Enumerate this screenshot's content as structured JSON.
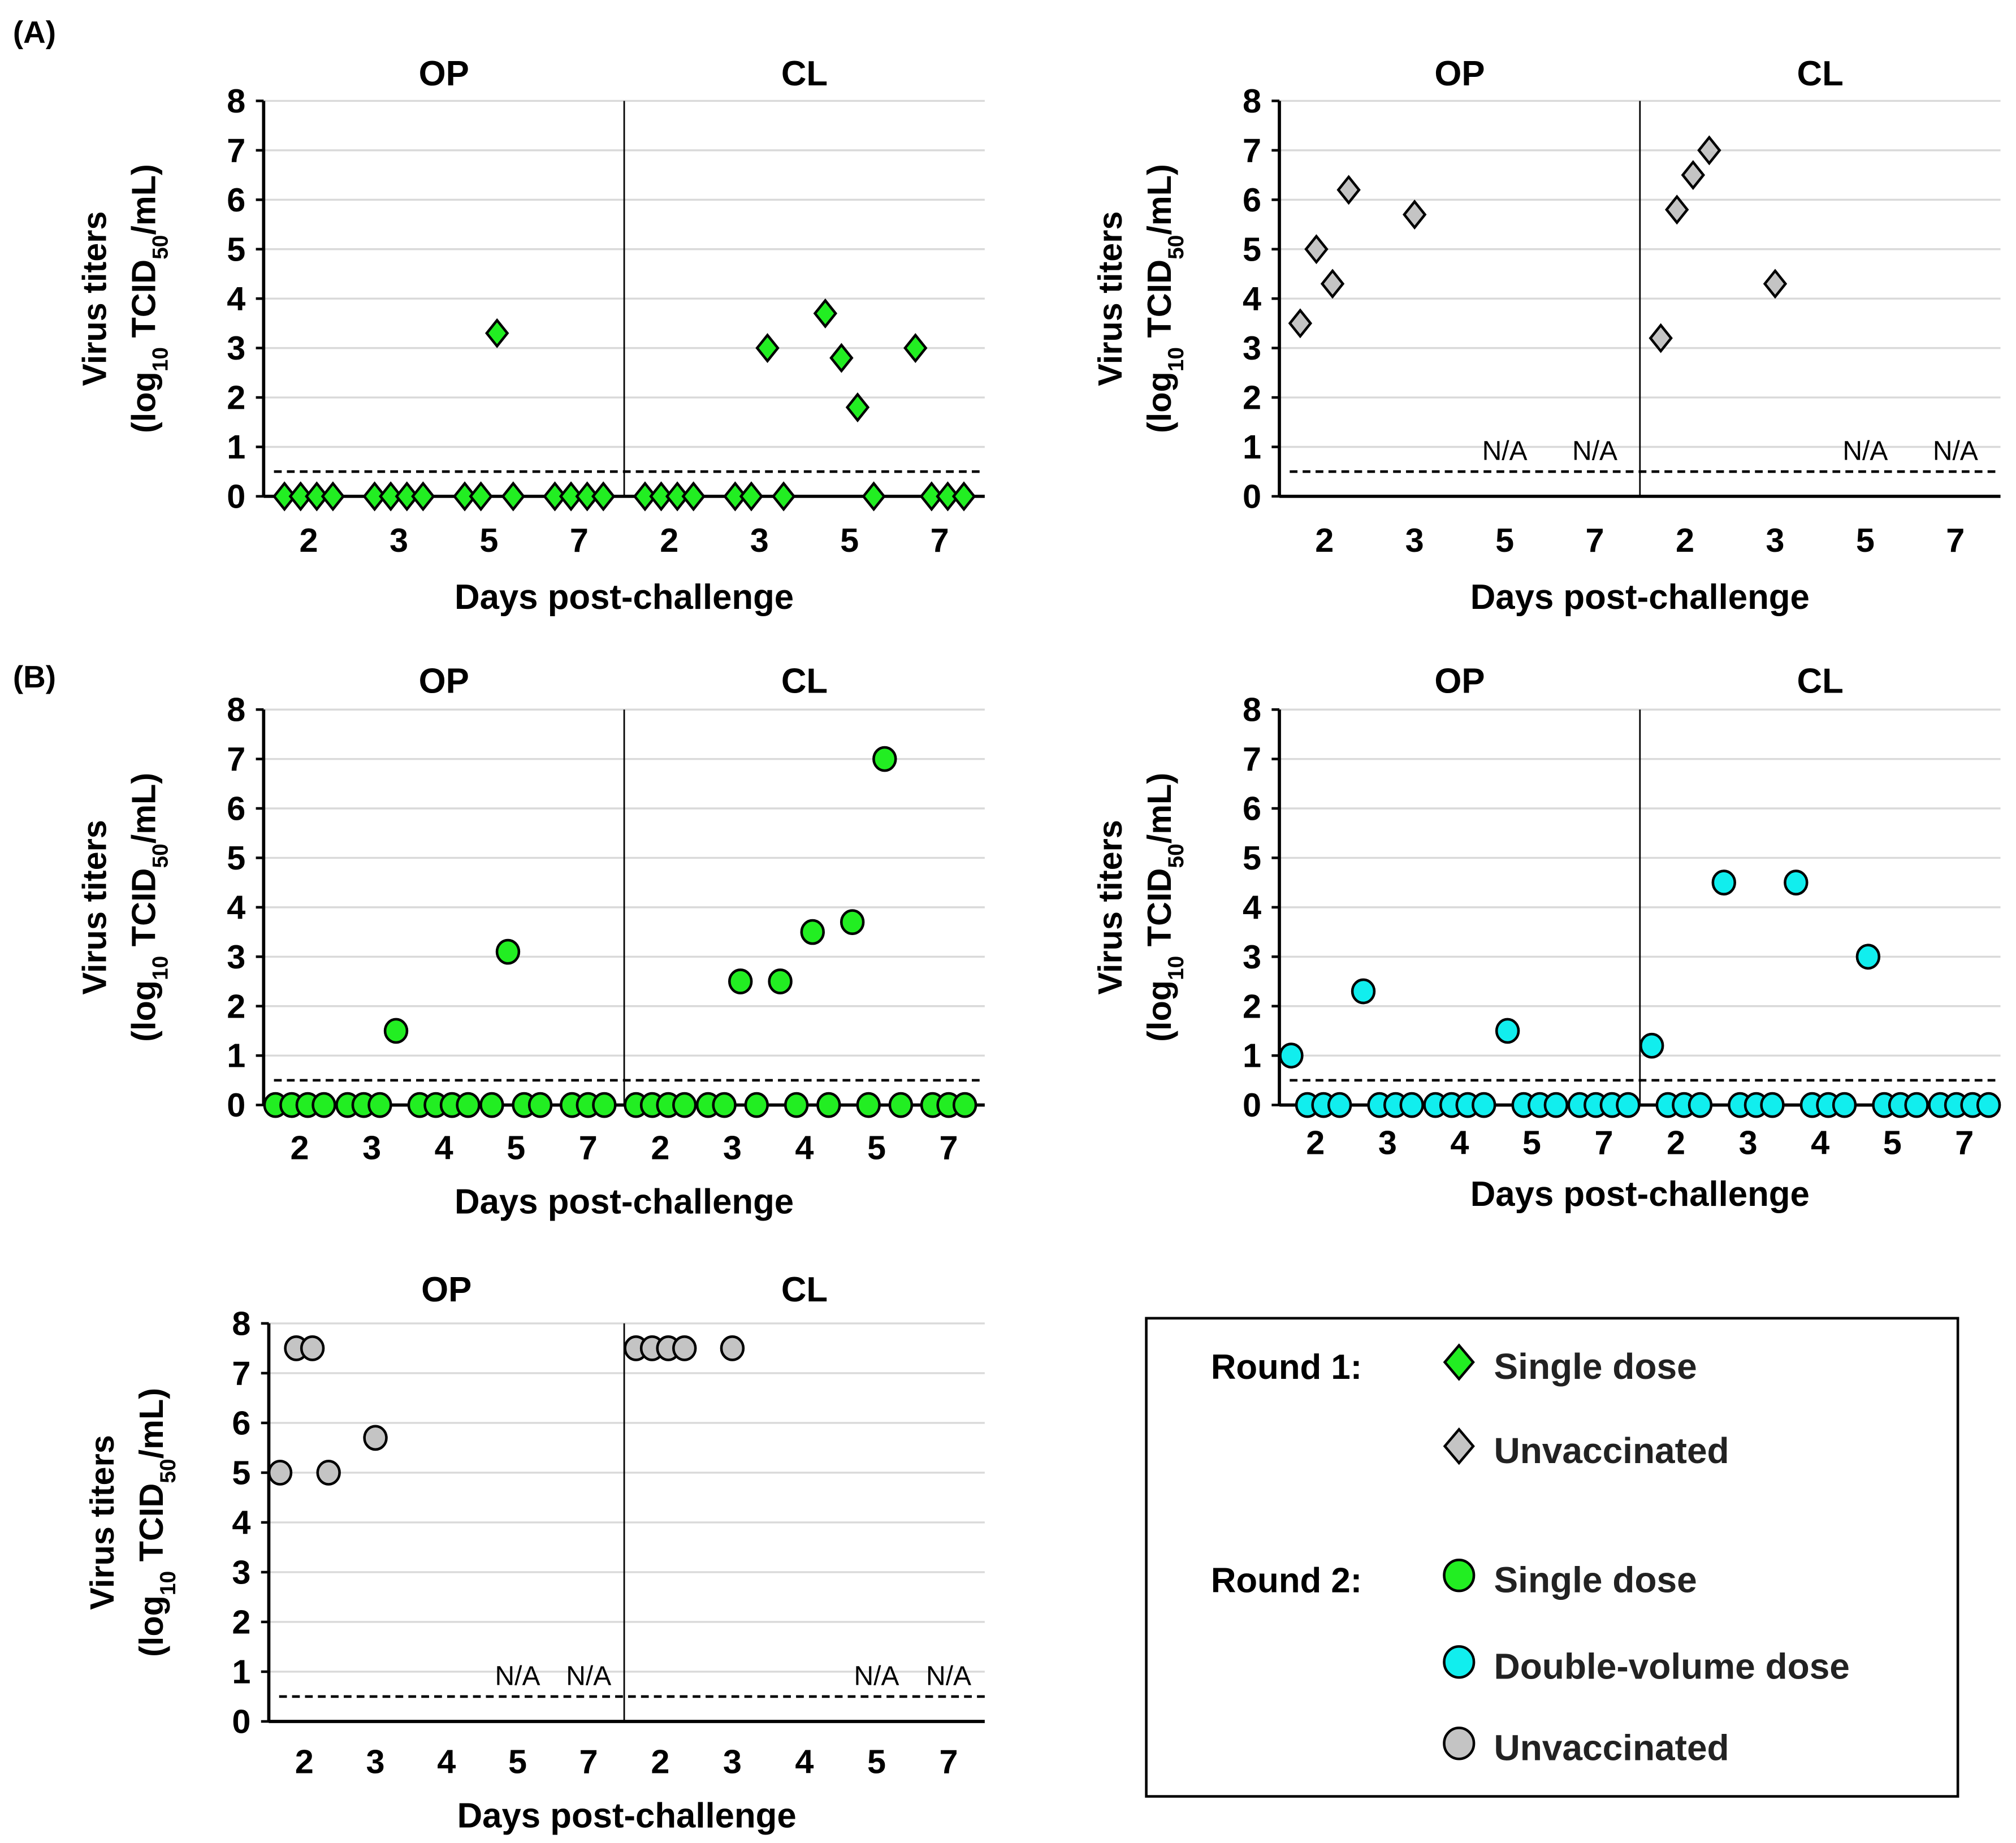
{
  "figure_labels": {
    "a": "(A)",
    "b": "(B)"
  },
  "colors": {
    "green": "#22ee22",
    "grey": "#c4c4c4",
    "cyan": "#11eeee",
    "grid": "#d9d9d9"
  },
  "chart_data": [
    {
      "type": "scatter",
      "marker": "diamond",
      "color_key": "green",
      "ylabel": [
        "Virus titers",
        "(log",
        "10",
        " TCID",
        "50",
        "/mL)"
      ],
      "xlabel": "Days post-challenge",
      "ylim": [
        0,
        8
      ],
      "yticks": [
        "0",
        "1",
        "2",
        "3",
        "4",
        "5",
        "6",
        "7",
        "8"
      ],
      "detection_limit": 0.5,
      "grid": true,
      "sections": [
        {
          "title": "OP",
          "groups": [
            {
              "day": "2",
              "values": [
                0,
                0,
                0,
                0
              ]
            },
            {
              "day": "3",
              "values": [
                0,
                0,
                0,
                0
              ]
            },
            {
              "day": "5",
              "values": [
                0,
                0,
                3.3,
                0
              ]
            },
            {
              "day": "7",
              "values": [
                0,
                0,
                0,
                0
              ]
            }
          ]
        },
        {
          "title": "CL",
          "groups": [
            {
              "day": "2",
              "values": [
                0,
                0,
                0,
                0
              ]
            },
            {
              "day": "3",
              "values": [
                0,
                0,
                3.0,
                0
              ]
            },
            {
              "day": "5",
              "values": [
                3.7,
                2.8,
                1.8,
                0
              ]
            },
            {
              "day": "7",
              "values": [
                3.0,
                0,
                0,
                0
              ]
            }
          ]
        }
      ]
    },
    {
      "type": "scatter",
      "marker": "diamond",
      "color_key": "grey",
      "ylabel": [
        "Virus titers",
        "(log",
        "10",
        " TCID",
        "50",
        "/mL)"
      ],
      "xlabel": "Days post-challenge",
      "ylim": [
        0,
        8
      ],
      "yticks": [
        "0",
        "1",
        "2",
        "3",
        "4",
        "5",
        "6",
        "7",
        "8"
      ],
      "detection_limit": 0.5,
      "grid": true,
      "sections": [
        {
          "title": "OP",
          "groups": [
            {
              "day": "2",
              "values": [
                3.5,
                5.0,
                4.3,
                6.2
              ]
            },
            {
              "day": "3",
              "values": [
                5.7
              ]
            },
            {
              "day": "5",
              "values": [],
              "note": "N/A"
            },
            {
              "day": "7",
              "values": [],
              "note": "N/A"
            }
          ]
        },
        {
          "title": "CL",
          "groups": [
            {
              "day": "2",
              "values": [
                3.2,
                5.8,
                6.5,
                7.0
              ]
            },
            {
              "day": "3",
              "values": [
                4.3
              ]
            },
            {
              "day": "5",
              "values": [],
              "note": "N/A"
            },
            {
              "day": "7",
              "values": [],
              "note": "N/A"
            }
          ]
        }
      ]
    },
    {
      "type": "scatter",
      "marker": "circle",
      "color_key": "green",
      "ylabel": [
        "Virus titers",
        "(log",
        "10",
        " TCID",
        "50",
        "/mL)"
      ],
      "xlabel": "Days post-challenge",
      "ylim": [
        0,
        8
      ],
      "yticks": [
        "0",
        "1",
        "2",
        "3",
        "4",
        "5",
        "6",
        "7",
        "8"
      ],
      "detection_limit": 0.5,
      "grid": true,
      "sections": [
        {
          "title": "OP",
          "groups": [
            {
              "day": "2",
              "values": [
                0,
                0,
                0,
                0
              ]
            },
            {
              "day": "3",
              "values": [
                0,
                0,
                0,
                1.5
              ]
            },
            {
              "day": "4",
              "values": [
                0,
                0,
                0,
                0
              ]
            },
            {
              "day": "5",
              "values": [
                0,
                3.1,
                0,
                0
              ]
            },
            {
              "day": "7",
              "values": [
                0,
                0,
                0
              ]
            }
          ]
        },
        {
          "title": "CL",
          "groups": [
            {
              "day": "2",
              "values": [
                0,
                0,
                0,
                0
              ]
            },
            {
              "day": "3",
              "values": [
                0,
                0,
                2.5,
                0
              ]
            },
            {
              "day": "4",
              "values": [
                2.5,
                0,
                3.5,
                0
              ]
            },
            {
              "day": "5",
              "values": [
                3.7,
                0,
                7.0,
                0
              ]
            },
            {
              "day": "7",
              "values": [
                0,
                0,
                0
              ]
            }
          ]
        }
      ]
    },
    {
      "type": "scatter",
      "marker": "circle",
      "color_key": "cyan",
      "ylabel": [
        "Virus titers",
        "(log",
        "10",
        " TCID",
        "50",
        "/mL)"
      ],
      "xlabel": "Days post-challenge",
      "ylim": [
        0,
        8
      ],
      "yticks": [
        "0",
        "1",
        "2",
        "3",
        "4",
        "5",
        "6",
        "7",
        "8"
      ],
      "detection_limit": 0.5,
      "grid": true,
      "sections": [
        {
          "title": "OP",
          "groups": [
            {
              "day": "2",
              "values": [
                1.0,
                0,
                0,
                0
              ]
            },
            {
              "day": "3",
              "values": [
                2.3,
                0,
                0,
                0
              ]
            },
            {
              "day": "4",
              "values": [
                0,
                0,
                0,
                0
              ]
            },
            {
              "day": "5",
              "values": [
                1.5,
                0,
                0,
                0
              ]
            },
            {
              "day": "7",
              "values": [
                0,
                0,
                0,
                0
              ]
            }
          ]
        },
        {
          "title": "CL",
          "groups": [
            {
              "day": "2",
              "values": [
                1.2,
                0,
                0,
                0
              ]
            },
            {
              "day": "3",
              "values": [
                4.5,
                0,
                0,
                0
              ]
            },
            {
              "day": "4",
              "values": [
                4.5,
                0,
                0,
                0
              ]
            },
            {
              "day": "5",
              "values": [
                3.0,
                0,
                0,
                0
              ]
            },
            {
              "day": "7",
              "values": [
                0,
                0,
                0,
                0
              ]
            }
          ]
        }
      ]
    },
    {
      "type": "scatter",
      "marker": "circle",
      "color_key": "grey",
      "ylabel": [
        "Virus titers",
        "(log",
        "10",
        " TCID",
        "50",
        "/mL)"
      ],
      "xlabel": "Days post-challenge",
      "ylim": [
        0,
        8
      ],
      "yticks": [
        "0",
        "1",
        "2",
        "3",
        "4",
        "5",
        "6",
        "7",
        "8"
      ],
      "detection_limit": 0.5,
      "grid": true,
      "sections": [
        {
          "title": "OP",
          "groups": [
            {
              "day": "2",
              "values": [
                5.0,
                7.5,
                7.5,
                5.0
              ]
            },
            {
              "day": "3",
              "values": [
                5.7
              ]
            },
            {
              "day": "4",
              "values": []
            },
            {
              "day": "5",
              "values": [],
              "note": "N/A"
            },
            {
              "day": "7",
              "values": [],
              "note": "N/A"
            }
          ]
        },
        {
          "title": "CL",
          "groups": [
            {
              "day": "2",
              "values": [
                7.5,
                7.5,
                7.5,
                7.5
              ]
            },
            {
              "day": "3",
              "values": [
                7.5
              ]
            },
            {
              "day": "4",
              "values": []
            },
            {
              "day": "5",
              "values": [],
              "note": "N/A"
            },
            {
              "day": "7",
              "values": [],
              "note": "N/A"
            }
          ]
        }
      ]
    }
  ],
  "legend": {
    "rounds": [
      {
        "label": "Round 1:",
        "entries": [
          {
            "marker": "diamond",
            "color_key": "green",
            "label": "Single dose"
          },
          {
            "marker": "diamond",
            "color_key": "grey",
            "label": "Unvaccinated"
          }
        ]
      },
      {
        "label": "Round 2:",
        "entries": [
          {
            "marker": "circle",
            "color_key": "green",
            "label": "Single dose"
          },
          {
            "marker": "circle",
            "color_key": "cyan",
            "label": "Double-volume dose"
          },
          {
            "marker": "circle",
            "color_key": "grey",
            "label": "Unvaccinated"
          }
        ]
      }
    ]
  }
}
